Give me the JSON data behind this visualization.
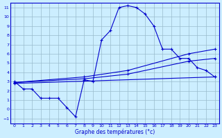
{
  "xlabel": "Graphe des températures (°c)",
  "bg_color": "#cceeff",
  "line_color": "#0000cc",
  "grid_color": "#99bbcc",
  "xlim": [
    -0.5,
    23.5
  ],
  "ylim": [
    -1.5,
    11.5
  ],
  "xticks": [
    0,
    1,
    2,
    3,
    4,
    5,
    6,
    7,
    8,
    9,
    10,
    11,
    12,
    13,
    14,
    15,
    16,
    17,
    18,
    19,
    20,
    21,
    22,
    23
  ],
  "yticks": [
    -1,
    0,
    1,
    2,
    3,
    4,
    5,
    6,
    7,
    8,
    9,
    10,
    11
  ],
  "curve1_x": [
    0,
    1,
    2,
    3,
    4,
    5,
    6,
    7,
    8,
    9,
    10,
    11,
    12,
    13,
    14,
    15,
    16,
    17,
    18,
    19,
    20,
    21,
    22,
    23
  ],
  "curve1_y": [
    3.0,
    2.2,
    2.2,
    1.2,
    1.2,
    1.2,
    0.2,
    -0.8,
    3.2,
    3.0,
    7.5,
    8.5,
    11.0,
    11.2,
    11.0,
    10.3,
    9.0,
    6.5,
    6.5,
    5.5,
    5.5,
    4.5,
    4.2,
    3.5
  ],
  "curve2_x": [
    0,
    23
  ],
  "curve2_y": [
    2.8,
    3.5
  ],
  "curve3_x": [
    0,
    8,
    13,
    20,
    23
  ],
  "curve3_y": [
    2.9,
    3.3,
    3.8,
    5.2,
    5.5
  ],
  "curve4_x": [
    0,
    8,
    13,
    20,
    23
  ],
  "curve4_y": [
    2.9,
    3.5,
    4.2,
    6.0,
    6.5
  ]
}
